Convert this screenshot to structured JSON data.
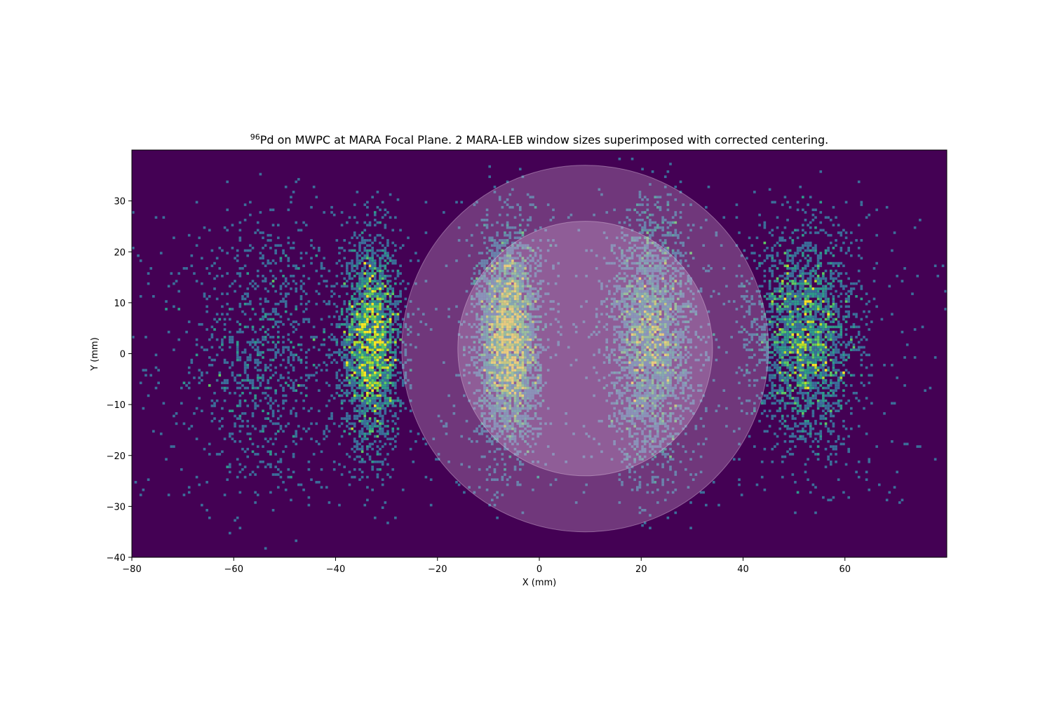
{
  "chart_data": {
    "type": "heatmap",
    "title": {
      "superscript": "96",
      "main": "Pd on MWPC at MARA Focal Plane. 2 MARA-LEB window sizes superimposed with corrected centering."
    },
    "xlabel": "X (mm)",
    "ylabel": "Y (mm)",
    "xlim": [
      -80,
      80
    ],
    "ylim": [
      -40,
      40
    ],
    "x_ticks": [
      -80,
      -60,
      -40,
      -20,
      0,
      20,
      40,
      60
    ],
    "x_tick_labels": [
      "−80",
      "−60",
      "−40",
      "−20",
      "0",
      "20",
      "40",
      "60"
    ],
    "y_ticks": [
      -40,
      -30,
      -20,
      -10,
      0,
      10,
      20,
      30
    ],
    "y_tick_labels": [
      "−40",
      "−30",
      "−20",
      "−10",
      "0",
      "10",
      "20",
      "30"
    ],
    "grid": false,
    "background_color": "#440154",
    "colormap": "viridis",
    "bin_size_mm": 0.5,
    "clusters": [
      {
        "center_x": -54,
        "center_y": 0,
        "sigma_x": 7,
        "sigma_y": 14,
        "weight": 0.35
      },
      {
        "center_x": -33,
        "center_y": 2,
        "sigma_x": 3,
        "sigma_y": 10,
        "weight": 1.0
      },
      {
        "center_x": -6,
        "center_y": 3,
        "sigma_x": 3,
        "sigma_y": 10,
        "weight": 1.4
      },
      {
        "center_x": 22,
        "center_y": 3,
        "sigma_x": 4,
        "sigma_y": 12,
        "weight": 1.1
      },
      {
        "center_x": 52,
        "center_y": 3,
        "sigma_x": 5,
        "sigma_y": 10,
        "weight": 1.0
      }
    ],
    "windows": [
      {
        "name": "",
        "center_x": 9,
        "center_y": 1,
        "radius": 36,
        "color": "#d6b6d6",
        "opacity": 0.3
      },
      {
        "name": "",
        "center_x": 9,
        "center_y": 1,
        "radius": 25,
        "color": "#d6b6d6",
        "opacity": 0.3
      }
    ]
  }
}
